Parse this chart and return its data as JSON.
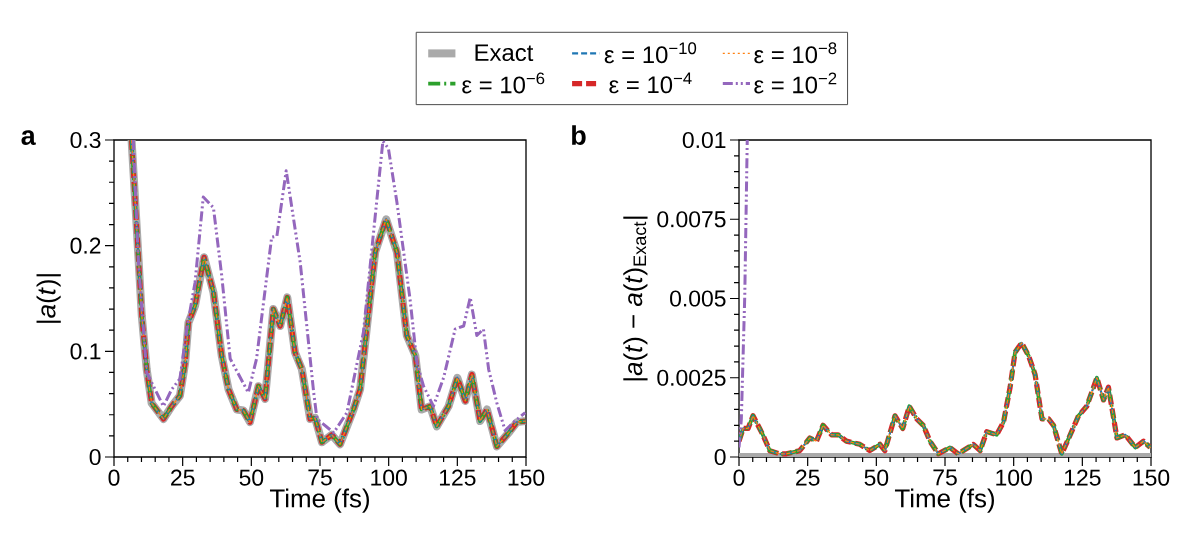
{
  "chart_data": [
    {
      "type": "line",
      "xlabel": "Time (fs)",
      "ylabel": "|*a*(*t*)|",
      "annotations": [
        "a"
      ],
      "legend": "top",
      "xlim": [
        0,
        150
      ],
      "xticks": [
        0,
        25,
        50,
        75,
        100,
        125,
        150
      ],
      "ylim": [
        0,
        0.3
      ],
      "yticks": [
        0,
        0.1,
        0.2,
        0.3
      ],
      "x": [
        6.4,
        8.3,
        10.1,
        11.9,
        13.7,
        18.0,
        21.0,
        24.0,
        25.9,
        27.1,
        29.5,
        32.8,
        36.2,
        39.2,
        41.7,
        44.7,
        47.1,
        49.5,
        52.6,
        55.0,
        58.0,
        60.5,
        63.1,
        65.9,
        68.4,
        71.4,
        73.2,
        75.7,
        79.3,
        82.3,
        87.2,
        89.6,
        92.0,
        95.1,
        99.1,
        103.0,
        106.6,
        109.7,
        112.0,
        115.1,
        117.5,
        121.8,
        125.0,
        127.9,
        130.3,
        133.3,
        135.8,
        139.4,
        143.7,
        146.7,
        149.7
      ],
      "series": [
        {
          "name": "Exact",
          "color": "#aaaaaa",
          "line_style": "solid",
          "values": [
            0.3,
            0.216,
            0.134,
            0.083,
            0.051,
            0.036,
            0.048,
            0.058,
            0.089,
            0.127,
            0.143,
            0.189,
            0.156,
            0.096,
            0.064,
            0.045,
            0.044,
            0.033,
            0.067,
            0.055,
            0.14,
            0.124,
            0.151,
            0.099,
            0.083,
            0.036,
            0.037,
            0.014,
            0.021,
            0.012,
            0.045,
            0.064,
            0.121,
            0.194,
            0.225,
            0.194,
            0.115,
            0.096,
            0.045,
            0.048,
            0.029,
            0.048,
            0.075,
            0.053,
            0.078,
            0.034,
            0.045,
            0.01,
            0.023,
            0.033,
            0.034
          ]
        },
        {
          "name": "ε = 10$^{−10}$",
          "color": "#1f77b4",
          "line_style": "dashed",
          "values": [
            0.3,
            0.216,
            0.134,
            0.083,
            0.051,
            0.036,
            0.048,
            0.058,
            0.089,
            0.127,
            0.143,
            0.189,
            0.156,
            0.096,
            0.064,
            0.045,
            0.044,
            0.033,
            0.067,
            0.055,
            0.14,
            0.124,
            0.151,
            0.099,
            0.083,
            0.036,
            0.037,
            0.014,
            0.021,
            0.012,
            0.045,
            0.064,
            0.121,
            0.194,
            0.225,
            0.194,
            0.115,
            0.096,
            0.045,
            0.048,
            0.029,
            0.048,
            0.075,
            0.053,
            0.078,
            0.034,
            0.045,
            0.01,
            0.023,
            0.033,
            0.034
          ]
        },
        {
          "name": "ε = 10$^{−8}$",
          "color": "#ff7f0e",
          "line_style": "dotted",
          "values": [
            0.3,
            0.216,
            0.134,
            0.083,
            0.051,
            0.036,
            0.048,
            0.058,
            0.089,
            0.127,
            0.143,
            0.189,
            0.156,
            0.096,
            0.064,
            0.045,
            0.044,
            0.033,
            0.067,
            0.055,
            0.14,
            0.124,
            0.151,
            0.099,
            0.083,
            0.036,
            0.037,
            0.014,
            0.021,
            0.012,
            0.045,
            0.064,
            0.121,
            0.194,
            0.225,
            0.194,
            0.115,
            0.096,
            0.045,
            0.048,
            0.029,
            0.048,
            0.075,
            0.053,
            0.078,
            0.034,
            0.045,
            0.01,
            0.023,
            0.033,
            0.034
          ]
        },
        {
          "name": "ε = 10$^{−6}$",
          "color": "#2ca02c",
          "line_style": "dashdot",
          "values": [
            0.3,
            0.216,
            0.134,
            0.083,
            0.051,
            0.036,
            0.048,
            0.058,
            0.089,
            0.127,
            0.143,
            0.189,
            0.156,
            0.096,
            0.064,
            0.045,
            0.044,
            0.033,
            0.067,
            0.055,
            0.14,
            0.124,
            0.151,
            0.099,
            0.083,
            0.036,
            0.037,
            0.014,
            0.021,
            0.012,
            0.045,
            0.064,
            0.121,
            0.194,
            0.225,
            0.194,
            0.115,
            0.096,
            0.045,
            0.048,
            0.029,
            0.048,
            0.075,
            0.053,
            0.078,
            0.034,
            0.045,
            0.01,
            0.023,
            0.033,
            0.034
          ]
        },
        {
          "name": "ε = 10$^{−4}$",
          "color": "#d62728",
          "line_style": "longdashed",
          "values": [
            0.3,
            0.216,
            0.134,
            0.083,
            0.051,
            0.036,
            0.048,
            0.058,
            0.089,
            0.127,
            0.143,
            0.189,
            0.156,
            0.096,
            0.064,
            0.045,
            0.044,
            0.033,
            0.067,
            0.055,
            0.14,
            0.124,
            0.151,
            0.099,
            0.083,
            0.036,
            0.037,
            0.014,
            0.021,
            0.012,
            0.045,
            0.064,
            0.121,
            0.194,
            0.225,
            0.194,
            0.115,
            0.096,
            0.045,
            0.048,
            0.029,
            0.048,
            0.075,
            0.053,
            0.078,
            0.034,
            0.045,
            0.01,
            0.023,
            0.033,
            0.034
          ]
        },
        {
          "name": "ε = 10$^{−2}$",
          "color": "#9467bd",
          "line_style": "dashdotdot",
          "x": [
            7.0,
            8.9,
            11.9,
            18.0,
            21.0,
            24.0,
            26.5,
            29.5,
            32.5,
            36.2,
            39.2,
            42.3,
            48.9,
            51.9,
            57.4,
            59.3,
            62.7,
            67.8,
            72.7,
            73.9,
            80.0,
            84.8,
            90.8,
            95.1,
            97.9,
            99.9,
            103.0,
            107.8,
            110.3,
            112.7,
            116.3,
            120.0,
            124.2,
            127.3,
            129.7,
            132.1,
            134.5,
            136.4,
            139.4,
            142.4,
            145.5,
            149.7
          ],
          "values": [
            0.3,
            0.184,
            0.08,
            0.048,
            0.064,
            0.074,
            0.121,
            0.165,
            0.246,
            0.236,
            0.172,
            0.093,
            0.061,
            0.093,
            0.208,
            0.209,
            0.271,
            0.184,
            0.061,
            0.036,
            0.023,
            0.042,
            0.118,
            0.228,
            0.299,
            0.292,
            0.241,
            0.149,
            0.089,
            0.067,
            0.048,
            0.075,
            0.121,
            0.124,
            0.151,
            0.115,
            0.121,
            0.083,
            0.051,
            0.025,
            0.033,
            0.042
          ]
        }
      ]
    },
    {
      "type": "line",
      "xlabel": "Time (fs)",
      "ylabel": "|*a*(*t*) − *a*(*t*)$_{Exact}$|",
      "annotations": [
        "b"
      ],
      "xlim": [
        0,
        150
      ],
      "xticks": [
        0,
        25,
        50,
        75,
        100,
        125,
        150
      ],
      "ylim": [
        0,
        0.01
      ],
      "yticks": [
        0,
        0.0025,
        0.005,
        0.0075,
        0.01
      ],
      "x": [
        0,
        1.5,
        3.3,
        5.1,
        6.9,
        8.7,
        11.2,
        14.8,
        17.3,
        22.1,
        25.8,
        28.2,
        30.6,
        33.7,
        36.1,
        39.1,
        44.0,
        47.6,
        51.3,
        53.1,
        56.8,
        59.6,
        62.0,
        64.7,
        67.1,
        69.5,
        72.6,
        76.8,
        79.8,
        85.3,
        87.8,
        90.2,
        93.8,
        96.3,
        98.7,
        100.5,
        102.9,
        105.4,
        107.8,
        110.3,
        112.7,
        114.5,
        117.5,
        120.6,
        123.6,
        126.6,
        130.3,
        132.7,
        134.5,
        137.6,
        140.6,
        144.3,
        147.3,
        149.7
      ],
      "series": [
        {
          "color": "#aaaaaa",
          "line_style": "solid",
          "x": [
            0,
            150
          ],
          "values": [
            0,
            0
          ]
        },
        {
          "color": "#1f77b4",
          "line_style": "dashed",
          "values": [
            0.0005,
            0.0009,
            0.0009,
            0.0013,
            0.001,
            0.0007,
            0.0002,
            0.0001,
            0.0001,
            0.0002,
            0.0006,
            0.0005,
            0.001,
            0.0007,
            0.0007,
            0.0005,
            0.0004,
            0.0002,
            0.0004,
            0.0002,
            0.0013,
            0.0009,
            0.0016,
            0.0012,
            0.001,
            0.0005,
            0.0001,
            0.0003,
            0.0001,
            0.0004,
            0.0002,
            0.0008,
            0.0007,
            0.0011,
            0.0022,
            0.0033,
            0.0036,
            0.0032,
            0.0026,
            0.0012,
            0.0012,
            0.001,
            0.0001,
            0.0007,
            0.0013,
            0.0016,
            0.0025,
            0.0018,
            0.0022,
            0.0006,
            0.0007,
            0.0003,
            0.0005,
            0.0003
          ]
        },
        {
          "color": "#ff7f0e",
          "line_style": "dotted",
          "values": [
            0.0005,
            0.0009,
            0.0009,
            0.0013,
            0.001,
            0.0007,
            0.0002,
            0.0001,
            0.0001,
            0.0002,
            0.0006,
            0.0005,
            0.001,
            0.0007,
            0.0007,
            0.0005,
            0.0004,
            0.0002,
            0.0004,
            0.0002,
            0.0013,
            0.0009,
            0.0016,
            0.0012,
            0.001,
            0.0005,
            0.0001,
            0.0003,
            0.0001,
            0.0004,
            0.0002,
            0.0008,
            0.0007,
            0.0011,
            0.0022,
            0.0033,
            0.0036,
            0.0032,
            0.0026,
            0.0012,
            0.0012,
            0.001,
            0.0001,
            0.0007,
            0.0013,
            0.0016,
            0.0025,
            0.0018,
            0.0022,
            0.0006,
            0.0007,
            0.0003,
            0.0005,
            0.0003
          ]
        },
        {
          "color": "#2ca02c",
          "line_style": "dashdot",
          "values": [
            0.0005,
            0.0009,
            0.0009,
            0.0013,
            0.001,
            0.0007,
            0.0002,
            0.0001,
            0.0001,
            0.0002,
            0.0006,
            0.0005,
            0.001,
            0.0007,
            0.0007,
            0.0005,
            0.0004,
            0.0002,
            0.0004,
            0.0002,
            0.0013,
            0.0009,
            0.0016,
            0.0012,
            0.001,
            0.0005,
            0.0001,
            0.0003,
            0.0001,
            0.0004,
            0.0002,
            0.0008,
            0.0007,
            0.0011,
            0.0022,
            0.0033,
            0.0036,
            0.0032,
            0.0026,
            0.0012,
            0.0012,
            0.001,
            0.0001,
            0.0007,
            0.0013,
            0.0016,
            0.0025,
            0.0018,
            0.0022,
            0.0006,
            0.0007,
            0.0003,
            0.0005,
            0.0003
          ]
        },
        {
          "color": "#d62728",
          "line_style": "longdashed",
          "values": [
            0.0005,
            0.0009,
            0.0009,
            0.0013,
            0.001,
            0.0007,
            0.0002,
            0.0001,
            0.0001,
            0.0002,
            0.0006,
            0.0005,
            0.001,
            0.0007,
            0.0007,
            0.0005,
            0.0004,
            0.0002,
            0.0004,
            0.0002,
            0.0013,
            0.0009,
            0.0016,
            0.0012,
            0.001,
            0.0005,
            0.0001,
            0.0003,
            0.0001,
            0.0004,
            0.0002,
            0.0008,
            0.0007,
            0.0011,
            0.0022,
            0.0033,
            0.0036,
            0.0032,
            0.0026,
            0.0012,
            0.0012,
            0.001,
            0.0001,
            0.0007,
            0.0013,
            0.0016,
            0.0025,
            0.0018,
            0.0022,
            0.0006,
            0.0007,
            0.0003,
            0.0005,
            0.0003
          ]
        },
        {
          "color": "#9467bd",
          "line_style": "dashdotdot",
          "x": [
            0,
            0.85,
            2.1,
            3.0
          ],
          "values": [
            0.0003,
            0.0012,
            0.0051,
            0.01
          ]
        }
      ]
    }
  ]
}
